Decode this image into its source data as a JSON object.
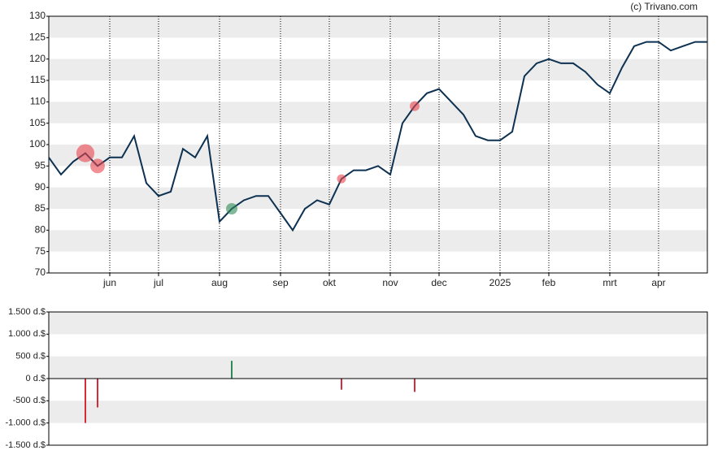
{
  "chart_data": [
    {
      "type": "line",
      "credit": "(c) Trivano.com",
      "color": "#0d3151",
      "marker_color": "#e8454f",
      "positive_marker_color": "#2e8b57",
      "grid": true,
      "categories": [
        null,
        null,
        null,
        null,
        null,
        "jun",
        null,
        null,
        null,
        "jul",
        null,
        null,
        null,
        null,
        "aug",
        null,
        null,
        null,
        null,
        "sep",
        null,
        null,
        null,
        "okt",
        null,
        null,
        null,
        null,
        "nov",
        null,
        null,
        null,
        "dec",
        null,
        null,
        null,
        null,
        "2025",
        null,
        null,
        null,
        "feb",
        null,
        null,
        null,
        null,
        "mrt",
        null,
        null,
        null,
        "apr",
        null,
        null,
        null,
        null
      ],
      "values": [
        97,
        93,
        96,
        98,
        95,
        97,
        97,
        102,
        91,
        88,
        89,
        99,
        97,
        102,
        82,
        85,
        87,
        88,
        88,
        84,
        80,
        85,
        87,
        86,
        92,
        94,
        94,
        95,
        93,
        105,
        109,
        112,
        113,
        110,
        107,
        102,
        101,
        101,
        103,
        116,
        119,
        120,
        119,
        119,
        117,
        114,
        112,
        118,
        123,
        124,
        124,
        122,
        123,
        124,
        124
      ],
      "ylim": [
        70,
        130
      ],
      "yticks": [
        70,
        75,
        80,
        85,
        90,
        95,
        100,
        105,
        110,
        115,
        120,
        125,
        130
      ]
    },
    {
      "type": "bar",
      "positive_color": "#2e8b57",
      "negative_color": "#d62c3a",
      "grid": true,
      "values": [
        null,
        null,
        null,
        -1000,
        -650,
        null,
        null,
        null,
        null,
        null,
        null,
        null,
        null,
        null,
        null,
        400,
        null,
        null,
        null,
        null,
        null,
        null,
        null,
        null,
        -250,
        null,
        null,
        null,
        null,
        null,
        -300,
        null,
        null,
        null,
        null,
        null,
        null,
        null,
        null,
        null,
        null,
        null,
        null,
        null,
        null,
        null,
        null,
        null,
        null,
        null,
        null,
        null,
        null,
        null,
        null
      ],
      "ylim": [
        -1500,
        1500
      ],
      "yticks": [
        {
          "value": -1500,
          "label": "-1.500 d.$"
        },
        {
          "value": -1000,
          "label": "-1.000 d.$"
        },
        {
          "value": -500,
          "label": "-500 d.$"
        },
        {
          "value": 0,
          "label": "0 d.$"
        },
        {
          "value": 500,
          "label": "500 d.$"
        },
        {
          "value": 1000,
          "label": "1.000 d.$"
        },
        {
          "value": 1500,
          "label": "1.500 d.$"
        }
      ]
    }
  ]
}
